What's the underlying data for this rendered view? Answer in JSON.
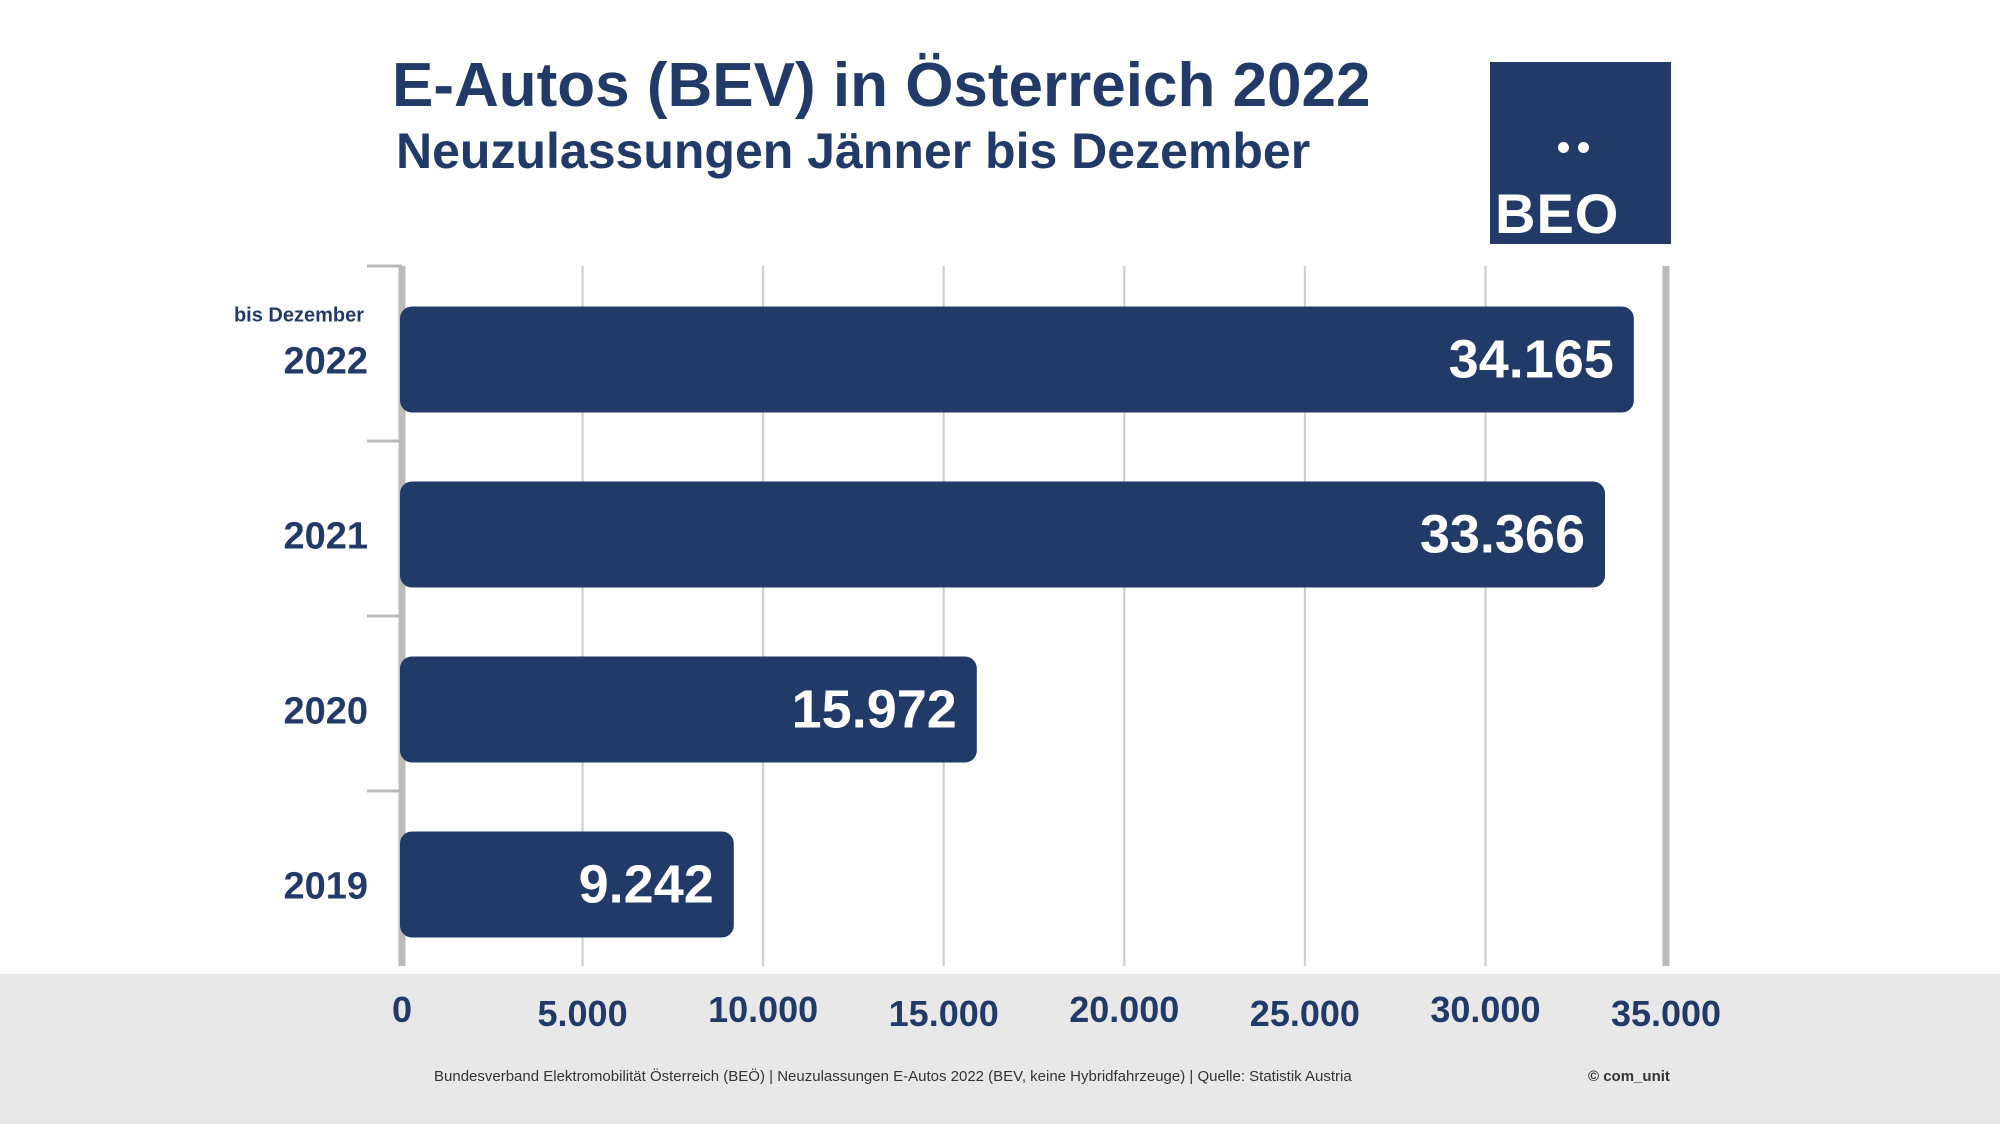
{
  "header": {
    "title": "E-Autos (BEV) in Österreich 2022",
    "subtitle": "Neuzulassungen Jänner bis Dezember"
  },
  "logo": {
    "text": "BEO"
  },
  "colors": {
    "bar": "#223a68",
    "text": "#223a68",
    "grid": "#cccccc",
    "axis": "#bbbbbb",
    "footer_band": "#e8e8e8"
  },
  "chart_data": {
    "type": "bar",
    "orientation": "horizontal",
    "categories": [
      "2022",
      "2021",
      "2020",
      "2019"
    ],
    "category_notes": [
      "bis Dezember",
      "",
      "",
      ""
    ],
    "values": [
      34165,
      33366,
      15972,
      9242
    ],
    "value_labels": [
      "34.165",
      "33.366",
      "15.972",
      "9.242"
    ],
    "xlim": [
      0,
      35000
    ],
    "x_ticks": [
      0,
      5000,
      10000,
      15000,
      20000,
      25000,
      30000,
      35000
    ],
    "x_tick_labels": [
      "0",
      "5.000",
      "10.000",
      "15.000",
      "20.000",
      "25.000",
      "30.000",
      "35.000"
    ],
    "grid": true
  },
  "footer": {
    "source": "Bundesverband Elektromobilität Österreich (BEÖ) | Neuzulassungen E-Autos 2022 (BEV, keine Hybridfahrzeuge) | Quelle: Statistik Austria",
    "copyright": "© com_unit"
  }
}
